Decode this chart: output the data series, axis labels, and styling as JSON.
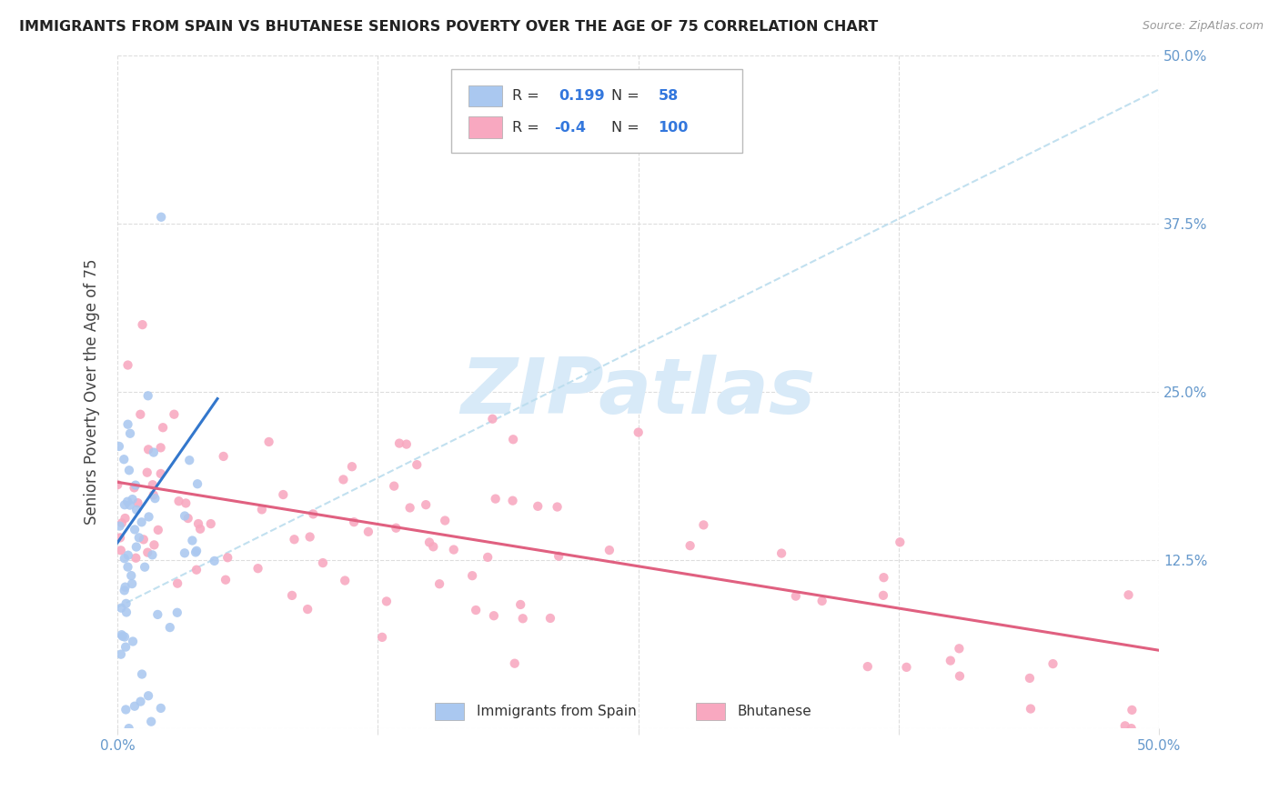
{
  "title": "IMMIGRANTS FROM SPAIN VS BHUTANESE SENIORS POVERTY OVER THE AGE OF 75 CORRELATION CHART",
  "source": "Source: ZipAtlas.com",
  "ylabel": "Seniors Poverty Over the Age of 75",
  "xlim": [
    0.0,
    0.5
  ],
  "ylim": [
    0.0,
    0.5
  ],
  "blue_R": 0.199,
  "blue_N": 58,
  "pink_R": -0.4,
  "pink_N": 100,
  "blue_color": "#aac8f0",
  "pink_color": "#f8a8c0",
  "blue_line_color": "#3377cc",
  "pink_line_color": "#e06080",
  "dash_line_color": "#bbddee",
  "watermark_text": "ZIPatlas",
  "watermark_color": "#d8eaf8",
  "grid_color": "#dddddd",
  "tick_color": "#6699cc",
  "title_color": "#222222",
  "source_color": "#999999",
  "label_color": "#444444",
  "blue_line_x0": 0.0,
  "blue_line_y0": 0.138,
  "blue_line_x1": 0.048,
  "blue_line_y1": 0.245,
  "pink_line_x0": 0.0,
  "pink_line_y0": 0.183,
  "pink_line_x1": 0.5,
  "pink_line_y1": 0.058,
  "dash_line_x0": 0.0,
  "dash_line_y0": 0.09,
  "dash_line_x1": 0.5,
  "dash_line_y1": 0.475
}
